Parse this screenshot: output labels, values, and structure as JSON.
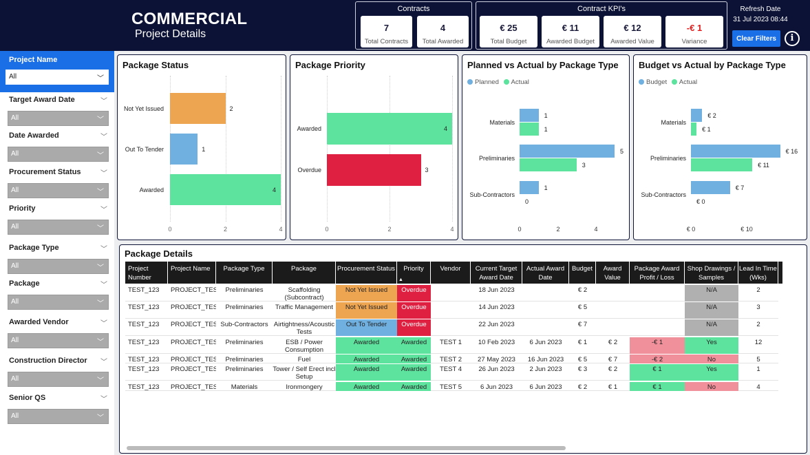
{
  "header": {
    "title": "COMMERCIAL",
    "subtitle": "Project Details",
    "contracts_label": "Contracts",
    "kpi_label": "Contract KPI's",
    "cards": [
      {
        "value": "7",
        "label": "Total Contracts"
      },
      {
        "value": "4",
        "label": "Total Awarded"
      },
      {
        "value": "€ 25",
        "label": "Total Budget"
      },
      {
        "value": "€ 11",
        "label": "Awarded Budget"
      },
      {
        "value": "€ 12",
        "label": "Awarded Value"
      },
      {
        "value": "-€ 1",
        "label": "Variance"
      }
    ],
    "refresh_label": "Refresh Date",
    "refresh_date": "31 Jul 2023 08:44",
    "clear_filters": "Clear Filters",
    "info_icon": "i",
    "variance_color": "#e02020"
  },
  "filters": [
    {
      "label": "Project Name",
      "value": "All"
    },
    {
      "label": "Target Award Date",
      "value": "All"
    },
    {
      "label": "Date Awarded",
      "value": "All"
    },
    {
      "label": "Procurement Status",
      "value": "All"
    },
    {
      "label": "Priority",
      "value": "All"
    },
    {
      "label": "Package Type",
      "value": "All"
    },
    {
      "label": "Package",
      "value": "All"
    },
    {
      "label": "Awarded Vendor",
      "value": "All"
    },
    {
      "label": "Construction Director",
      "value": "All"
    },
    {
      "label": "Senior QS",
      "value": "All"
    }
  ],
  "colors": {
    "orange": "#eda552",
    "blue": "#6fb0e0",
    "green": "#5ee39e",
    "red": "#e02040",
    "grey": "#b0b0b0",
    "pink": "#f0909a",
    "navy": "#0c1235",
    "accent": "#1a6ee6"
  },
  "chart_data": [
    {
      "type": "bar",
      "title": "Package Status",
      "categories": [
        "Not Yet Issued",
        "Out To Tender",
        "Awarded"
      ],
      "values": [
        2,
        1,
        4
      ],
      "value_labels": [
        "2",
        "1",
        "4"
      ],
      "ticks": [
        "0",
        "2",
        "4"
      ],
      "xlim": [
        0,
        4
      ]
    },
    {
      "type": "bar",
      "title": "Package Priority",
      "categories": [
        "Awarded",
        "Overdue"
      ],
      "values": [
        4,
        3
      ],
      "value_labels": [
        "4",
        "3"
      ],
      "ticks": [
        "0",
        "2",
        "4"
      ],
      "xlim": [
        0,
        4
      ]
    },
    {
      "type": "bar",
      "title": "Planned vs Actual by Package Type",
      "categories": [
        "Materials",
        "Preliminaries",
        "Sub-Contractors"
      ],
      "series": [
        {
          "name": "Planned",
          "values": [
            1,
            5,
            1
          ],
          "labels": [
            "1",
            "5",
            "1"
          ]
        },
        {
          "name": "Actual",
          "values": [
            1,
            3,
            0
          ],
          "labels": [
            "1",
            "3",
            "0"
          ]
        }
      ],
      "ticks": [
        "0",
        "2",
        "4"
      ],
      "xlim": [
        0,
        5
      ]
    },
    {
      "type": "bar",
      "title": "Budget vs Actual by Package Type",
      "categories": [
        "Materials",
        "Preliminaries",
        "Sub-Contractors"
      ],
      "series": [
        {
          "name": "Budget",
          "values": [
            2,
            16,
            7
          ],
          "labels": [
            "€ 2",
            "€ 16",
            "€ 7"
          ]
        },
        {
          "name": "Actual",
          "values": [
            1,
            11,
            0
          ],
          "labels": [
            "€ 1",
            "€ 11",
            "€ 0"
          ]
        }
      ],
      "ticks": [
        "€ 0",
        "€ 10"
      ],
      "xlim": [
        0,
        16
      ]
    }
  ],
  "table": {
    "title": "Package Details",
    "columns": [
      "Project Number",
      "Project Name",
      "Package Type",
      "Package",
      "Procurement Status",
      "Priority",
      "Vendor",
      "Current Target Award Date",
      "Actual Award Date",
      "Budget",
      "Award Value",
      "Package Award Profit / Loss",
      "Shop Drawings / Samples",
      "Lead In Time (Wks)"
    ],
    "rows": [
      [
        "TEST_123",
        "PROJECT_TEST",
        "Preliminaries",
        "Scaffolding (Subcontract)",
        "Not Yet Issued",
        "Overdue",
        "",
        "18 Jun 2023",
        "",
        "€ 2",
        "",
        "",
        "N/A",
        "2"
      ],
      [
        "TEST_123",
        "PROJECT_TEST",
        "Preliminaries",
        "Traffic Management",
        "Not Yet Issued",
        "Overdue",
        "",
        "14 Jun 2023",
        "",
        "€ 5",
        "",
        "",
        "N/A",
        "3"
      ],
      [
        "TEST_123",
        "PROJECT_TEST",
        "Sub-Contractors",
        "Airtightness/Acoustic Tests",
        "Out To Tender",
        "Overdue",
        "",
        "22 Jun 2023",
        "",
        "€ 7",
        "",
        "",
        "N/A",
        "2"
      ],
      [
        "TEST_123",
        "PROJECT_TEST",
        "Preliminaries",
        "ESB / Power Consumption",
        "Awarded",
        "Awarded",
        "TEST 1",
        "10 Feb 2023",
        "6 Jun 2023",
        "€ 1",
        "€ 2",
        "-€ 1",
        "Yes",
        "12"
      ],
      [
        "TEST_123",
        "PROJECT_TEST",
        "Preliminaries",
        "Fuel",
        "Awarded",
        "Awarded",
        "TEST 2",
        "27 May 2023",
        "16 Jun 2023",
        "€ 5",
        "€ 7",
        "-€ 2",
        "No",
        "5"
      ],
      [
        "TEST_123",
        "PROJECT_TEST",
        "Preliminaries",
        "Tower / Self Erect incl Setup",
        "Awarded",
        "Awarded",
        "TEST 4",
        "26 Jun 2023",
        "2 Jun 2023",
        "€ 3",
        "€ 2",
        "€ 1",
        "Yes",
        "1"
      ],
      [
        "TEST_123",
        "PROJECT_TEST",
        "Materials",
        "Ironmongery",
        "Awarded",
        "Awarded",
        "TEST 5",
        "6 Jun 2023",
        "6 Jun 2023",
        "€ 2",
        "€ 1",
        "€ 1",
        "No",
        "4"
      ]
    ]
  }
}
